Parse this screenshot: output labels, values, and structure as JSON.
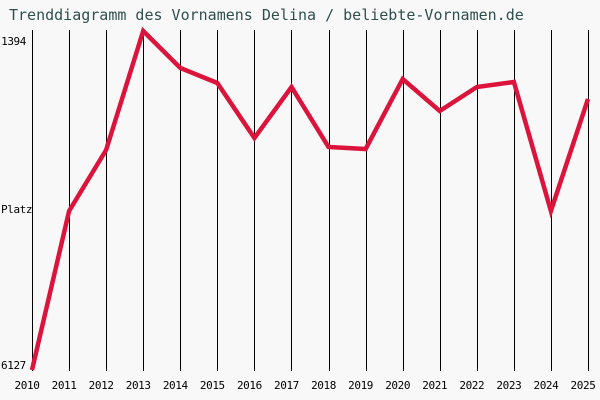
{
  "chart_data": {
    "type": "line",
    "title": "Trenddiagramm des Vornamens Delina / beliebte-Vornamen.de",
    "ylabel": "Platz",
    "y_axis": {
      "top_label": "1394",
      "bottom_label": "6127",
      "min": 1394,
      "max": 6127,
      "inverted": true
    },
    "x": [
      2010,
      2011,
      2012,
      2013,
      2014,
      2015,
      2016,
      2017,
      2018,
      2019,
      2020,
      2021,
      2022,
      2023,
      2024,
      2025
    ],
    "series": [
      {
        "name": "Delina",
        "values": [
          6127,
          3907,
          3055,
          1394,
          1911,
          2120,
          2888,
          2176,
          3013,
          3041,
          2064,
          2511,
          2176,
          2106,
          3907,
          2343
        ]
      }
    ],
    "grid": "vertical-only",
    "legend": "none",
    "colors": {
      "line": "#dc143c",
      "title": "#2f4f4f",
      "grid": "#000000",
      "tick_text": "#000000",
      "background": "#f8f8f8"
    }
  }
}
